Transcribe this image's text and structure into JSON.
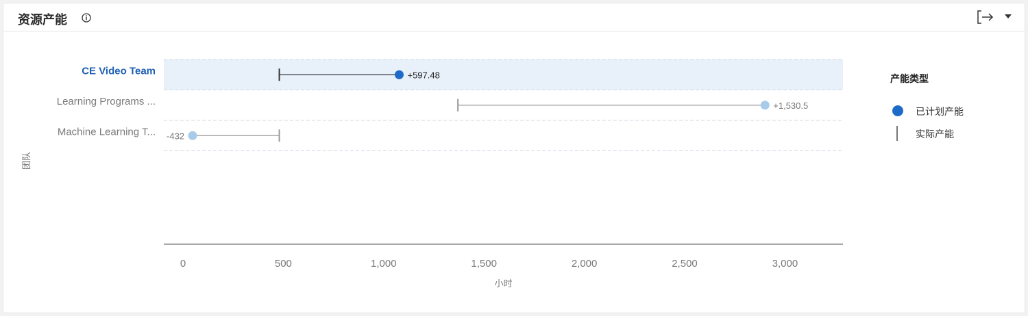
{
  "header": {
    "title": "资源产能"
  },
  "icons": {
    "info": "info-circle-icon",
    "export": "export-icon",
    "dropdown": "caret-down-icon"
  },
  "colors": {
    "planned_selected": "#1e6ac9",
    "planned_other": "#a9cbea",
    "actual_selected": "#333333",
    "actual_other": "#999999",
    "highlight_band": "#e8f0fa"
  },
  "legend": {
    "title": "产能类型",
    "planned": "已计划产能",
    "actual": "实际产能"
  },
  "chart_data": {
    "type": "dumbbell",
    "orientation": "horizontal",
    "ylabel": "团队",
    "xlabel": "小时",
    "xlim": [
      -90,
      3250
    ],
    "xticks": [
      0,
      500,
      1000,
      1500,
      2000,
      2500,
      3000
    ],
    "xtick_labels": [
      "0",
      "500",
      "1,000",
      "1,500",
      "2,000",
      "2,500",
      "3,000"
    ],
    "grid": false,
    "legend_position": "right",
    "selected_team": 0,
    "teams": [
      {
        "label": "CE Video Team",
        "actual": 480,
        "planned": 1077.48,
        "diff_label": "+597.48"
      },
      {
        "label": "Learning Programs ...",
        "actual": 1370,
        "planned": 2900.5,
        "diff_label": "+1,530.5"
      },
      {
        "label": "Machine Learning T...",
        "actual": 480,
        "planned": 48,
        "diff_label": "-432"
      }
    ]
  }
}
